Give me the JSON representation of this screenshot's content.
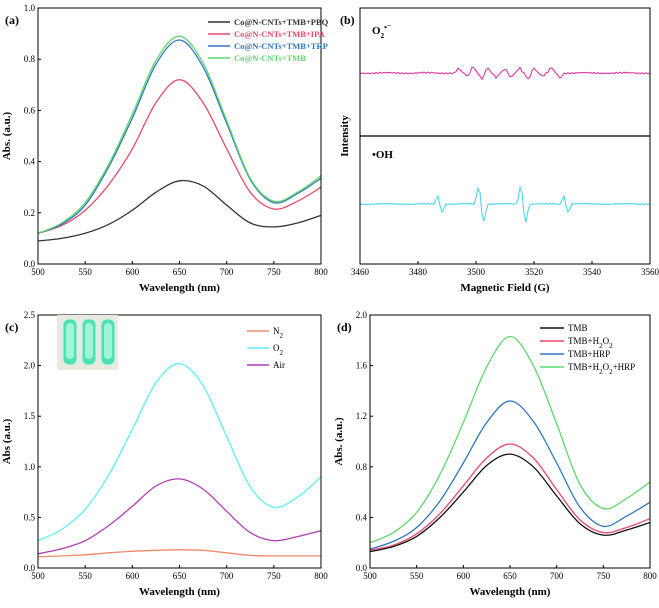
{
  "chart_data": [
    {
      "panel": "(a)",
      "type": "line",
      "xlabel": "Wavelength (nm)",
      "ylabel": "Abs. (a.u.)",
      "xlim": [
        500,
        800
      ],
      "ylim": [
        0,
        1.0
      ],
      "xticks": [
        "500",
        "550",
        "600",
        "650",
        "700",
        "750",
        "800"
      ],
      "yticks": [
        "0.0",
        "0.2",
        "0.4",
        "0.6",
        "0.8",
        "1.0"
      ],
      "x": [
        500,
        525,
        550,
        575,
        600,
        625,
        650,
        675,
        700,
        725,
        750,
        775,
        800
      ],
      "series": [
        {
          "name": "Co@N-CNTs+TMB+PBQ",
          "color": "#333333",
          "values": [
            0.09,
            0.1,
            0.12,
            0.155,
            0.21,
            0.28,
            0.325,
            0.305,
            0.23,
            0.16,
            0.145,
            0.16,
            0.19
          ]
        },
        {
          "name": "Co@N-CNTs+TMB+IPA",
          "color": "#e8496d",
          "values": [
            0.12,
            0.15,
            0.21,
            0.31,
            0.45,
            0.63,
            0.72,
            0.63,
            0.45,
            0.28,
            0.215,
            0.245,
            0.3
          ]
        },
        {
          "name": "Co@N-CNTs+TMB+TRP",
          "color": "#2d77c2",
          "values": [
            0.12,
            0.155,
            0.23,
            0.38,
            0.57,
            0.78,
            0.875,
            0.77,
            0.55,
            0.33,
            0.24,
            0.275,
            0.335
          ]
        },
        {
          "name": "Co@N-CNTs+TMB",
          "color": "#5fd86a",
          "values": [
            0.12,
            0.16,
            0.24,
            0.39,
            0.585,
            0.795,
            0.89,
            0.785,
            0.56,
            0.335,
            0.245,
            0.28,
            0.345
          ]
        }
      ]
    },
    {
      "panel": "(b)",
      "type": "line",
      "xlabel": "Magnetic Field (G)",
      "ylabel": "Intensity",
      "xlim": [
        3460,
        3560
      ],
      "xticks": [
        "3460",
        "3480",
        "3500",
        "3520",
        "3540",
        "3560"
      ],
      "series": [
        {
          "name": "O₂•⁻",
          "color": "#e0389f",
          "features": [
            {
              "x": 3494,
              "dy": 5
            },
            {
              "x": 3497,
              "dy": -4
            },
            {
              "x": 3499,
              "dy": 7
            },
            {
              "x": 3502,
              "dy": -6
            },
            {
              "x": 3504,
              "dy": 6
            },
            {
              "x": 3507,
              "dy": -5
            },
            {
              "x": 3510,
              "dy": 4
            },
            {
              "x": 3512,
              "dy": -5
            },
            {
              "x": 3515,
              "dy": 6
            },
            {
              "x": 3518,
              "dy": -6
            },
            {
              "x": 3520,
              "dy": 5
            },
            {
              "x": 3523,
              "dy": -4
            },
            {
              "x": 3526,
              "dy": 6
            },
            {
              "x": 3529,
              "dy": -5
            }
          ]
        },
        {
          "name": "•OH",
          "color": "#4fd6f0",
          "features": [
            {
              "x": 3487,
              "dy": 11
            },
            {
              "x": 3488,
              "dy": -11
            },
            {
              "x": 3501,
              "dy": 21
            },
            {
              "x": 3502.5,
              "dy": -21
            },
            {
              "x": 3515.5,
              "dy": 21
            },
            {
              "x": 3517,
              "dy": -21
            },
            {
              "x": 3530.5,
              "dy": 11
            },
            {
              "x": 3531.5,
              "dy": -11
            }
          ]
        }
      ]
    },
    {
      "panel": "(c)",
      "type": "line",
      "xlabel": "Wavelength (nm)",
      "ylabel": "Abs (a.u.)",
      "xlim": [
        500,
        800
      ],
      "ylim": [
        0,
        2.5
      ],
      "xticks": [
        "500",
        "550",
        "600",
        "650",
        "700",
        "750",
        "800"
      ],
      "yticks": [
        "0.0",
        "0.5",
        "1.0",
        "1.5",
        "2.0",
        "2.5"
      ],
      "x": [
        500,
        525,
        550,
        575,
        600,
        625,
        650,
        675,
        700,
        725,
        750,
        775,
        800
      ],
      "series": [
        {
          "name": "N₂",
          "color": "#f08a6a",
          "values": [
            0.11,
            0.12,
            0.13,
            0.15,
            0.165,
            0.175,
            0.18,
            0.175,
            0.15,
            0.125,
            0.12,
            0.12,
            0.12
          ]
        },
        {
          "name": "O₂",
          "color": "#5ff0f0",
          "values": [
            0.27,
            0.38,
            0.58,
            0.92,
            1.37,
            1.83,
            2.02,
            1.8,
            1.3,
            0.8,
            0.6,
            0.7,
            0.9
          ]
        },
        {
          "name": "Air",
          "color": "#b43cb4",
          "values": [
            0.14,
            0.19,
            0.27,
            0.42,
            0.61,
            0.81,
            0.88,
            0.78,
            0.56,
            0.35,
            0.27,
            0.31,
            0.37
          ]
        }
      ]
    },
    {
      "panel": "(d)",
      "type": "line",
      "xlabel": "Wavelength (nm)",
      "ylabel": "Abs. (a.u.)",
      "xlim": [
        500,
        800
      ],
      "ylim": [
        0,
        2.0
      ],
      "xticks": [
        "500",
        "550",
        "600",
        "650",
        "700",
        "750",
        "800"
      ],
      "yticks": [
        "0.0",
        "0.4",
        "0.8",
        "1.2",
        "1.6",
        "2.0"
      ],
      "x": [
        500,
        525,
        550,
        575,
        600,
        625,
        650,
        675,
        700,
        725,
        750,
        775,
        800
      ],
      "series": [
        {
          "name": "TMB",
          "color": "#111111",
          "values": [
            0.13,
            0.17,
            0.25,
            0.4,
            0.6,
            0.81,
            0.9,
            0.8,
            0.57,
            0.35,
            0.26,
            0.3,
            0.36
          ]
        },
        {
          "name": "TMB+H₂O₂",
          "color": "#e8496d",
          "values": [
            0.14,
            0.18,
            0.27,
            0.43,
            0.65,
            0.87,
            0.98,
            0.87,
            0.62,
            0.38,
            0.28,
            0.32,
            0.39
          ]
        },
        {
          "name": "TMB+HRP",
          "color": "#2d77c2",
          "values": [
            0.15,
            0.21,
            0.32,
            0.53,
            0.83,
            1.15,
            1.32,
            1.16,
            0.83,
            0.48,
            0.33,
            0.41,
            0.52
          ]
        },
        {
          "name": "TMB+H₂O₂+HRP",
          "color": "#5fd86a",
          "values": [
            0.2,
            0.28,
            0.44,
            0.74,
            1.15,
            1.59,
            1.83,
            1.6,
            1.14,
            0.66,
            0.47,
            0.55,
            0.68
          ]
        }
      ]
    }
  ]
}
